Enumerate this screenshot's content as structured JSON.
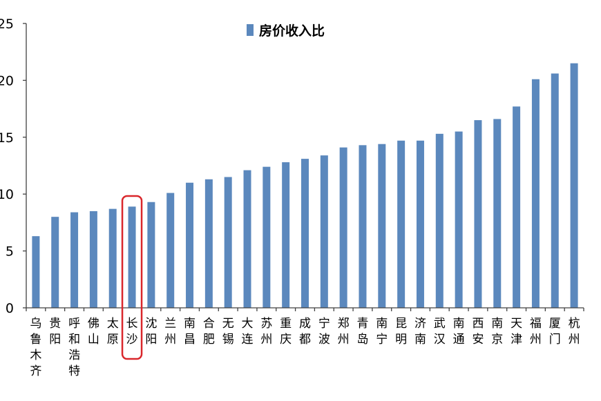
{
  "chart_data": {
    "type": "bar",
    "title": "",
    "legend": [
      "房价收入比"
    ],
    "legend_position": "top-center",
    "xlabel": "",
    "ylabel": "",
    "ylim": [
      0,
      25
    ],
    "yticks": [
      "0",
      "5",
      "10",
      "15",
      "20",
      "25"
    ],
    "grid": false,
    "bar_color": "#5b88bd",
    "highlight_color": "#d9262b",
    "highlighted_category": "长沙",
    "categories": [
      "乌鲁木齐",
      "贵阳",
      "呼和浩特",
      "佛山",
      "太原",
      "长沙",
      "沈阳",
      "兰州",
      "南昌",
      "合肥",
      "无锡",
      "大连",
      "苏州",
      "重庆",
      "成都",
      "宁波",
      "郑州",
      "青岛",
      "南宁",
      "昆明",
      "济南",
      "武汉",
      "南通",
      "西安",
      "南京",
      "天津",
      "福州",
      "厦门",
      "杭州"
    ],
    "series": [
      {
        "name": "房价收入比",
        "values": [
          6.3,
          8.0,
          8.4,
          8.5,
          8.7,
          8.9,
          9.3,
          10.1,
          11.0,
          11.3,
          11.5,
          12.1,
          12.4,
          12.8,
          13.1,
          13.4,
          14.1,
          14.3,
          14.4,
          14.7,
          14.7,
          15.3,
          15.5,
          16.5,
          16.6,
          17.7,
          20.1,
          20.6,
          21.5
        ]
      }
    ]
  }
}
